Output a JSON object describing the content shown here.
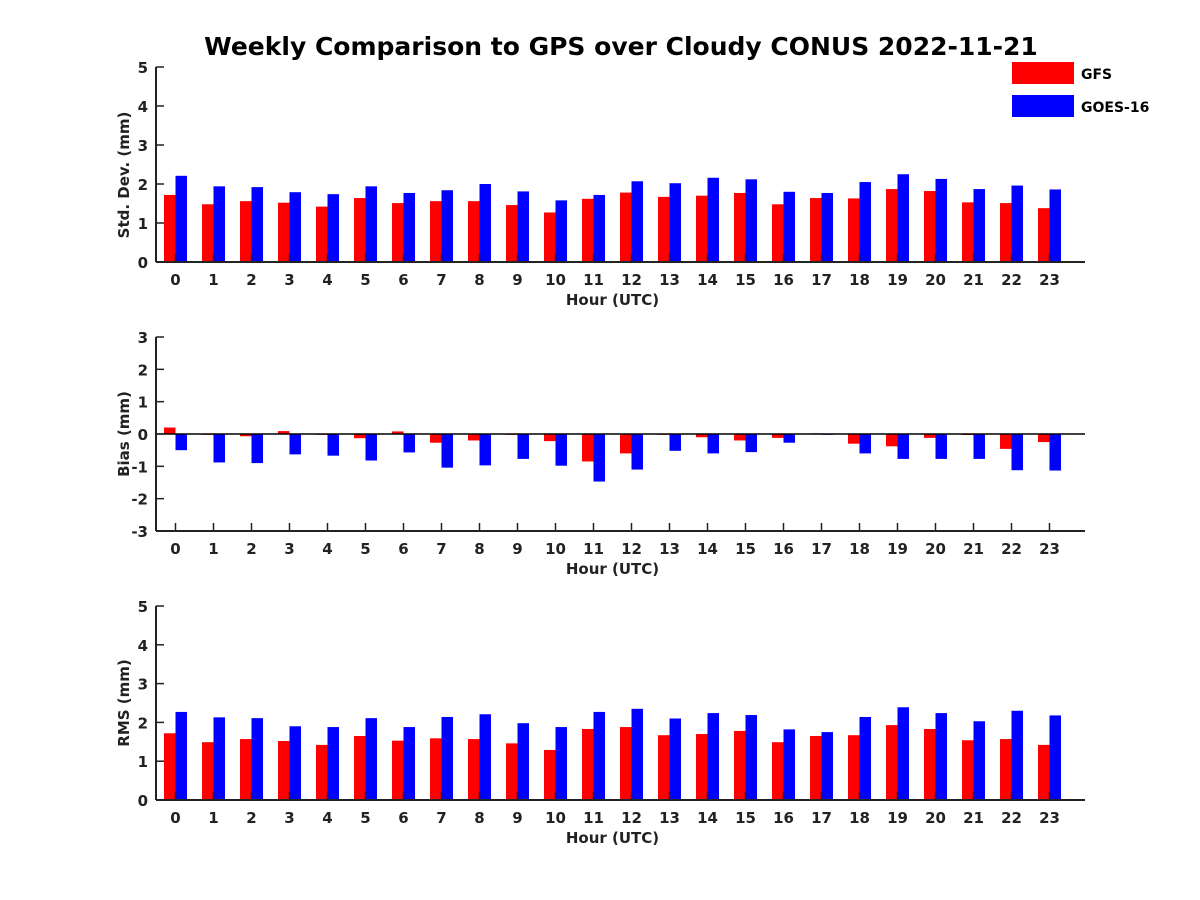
{
  "chart_data": {
    "title": "Weekly Comparison to GPS over Cloudy CONUS 2022-11-21",
    "legend": {
      "placement": "top-right",
      "entries": [
        {
          "name": "GFS",
          "color": "#ff0000"
        },
        {
          "name": "GOES-16",
          "color": "#0000ff"
        }
      ]
    },
    "panels": [
      {
        "type": "bar",
        "xlabel": "Hour (UTC)",
        "ylabel": "Std. Dev. (mm)",
        "ylim": [
          0,
          5
        ],
        "yticks": [
          0,
          1,
          2,
          3,
          4,
          5
        ],
        "categories": [
          "0",
          "1",
          "2",
          "3",
          "4",
          "5",
          "6",
          "7",
          "8",
          "9",
          "10",
          "11",
          "12",
          "13",
          "14",
          "15",
          "16",
          "17",
          "18",
          "19",
          "20",
          "21",
          "22",
          "23"
        ],
        "series": [
          {
            "name": "GFS",
            "color": "#ff0000",
            "values": [
              1.72,
              1.48,
              1.56,
              1.52,
              1.42,
              1.64,
              1.51,
              1.56,
              1.56,
              1.46,
              1.27,
              1.62,
              1.78,
              1.67,
              1.7,
              1.77,
              1.48,
              1.64,
              1.63,
              1.87,
              1.82,
              1.53,
              1.51,
              1.38
            ]
          },
          {
            "name": "GOES-16",
            "color": "#0000ff",
            "values": [
              2.21,
              1.94,
              1.92,
              1.79,
              1.74,
              1.94,
              1.77,
              1.84,
              2.0,
              1.81,
              1.58,
              1.72,
              2.07,
              2.02,
              2.16,
              2.12,
              1.8,
              1.77,
              2.05,
              2.25,
              2.13,
              1.87,
              1.96,
              1.86
            ]
          }
        ]
      },
      {
        "type": "bar",
        "xlabel": "Hour (UTC)",
        "ylabel": "Bias (mm)",
        "ylim": [
          -3,
          3
        ],
        "yticks": [
          -3,
          -2,
          -1,
          0,
          1,
          2,
          3
        ],
        "categories": [
          "0",
          "1",
          "2",
          "3",
          "4",
          "5",
          "6",
          "7",
          "8",
          "9",
          "10",
          "11",
          "12",
          "13",
          "14",
          "15",
          "16",
          "17",
          "18",
          "19",
          "20",
          "21",
          "22",
          "23"
        ],
        "series": [
          {
            "name": "GFS",
            "color": "#ff0000",
            "values": [
              0.2,
              -0.02,
              -0.07,
              0.09,
              -0.02,
              -0.13,
              0.08,
              -0.27,
              -0.2,
              -0.02,
              -0.22,
              -0.85,
              -0.6,
              -0.02,
              -0.1,
              -0.2,
              -0.12,
              0.02,
              -0.3,
              -0.38,
              -0.12,
              -0.03,
              -0.46,
              -0.25
            ]
          },
          {
            "name": "GOES-16",
            "color": "#0000ff",
            "values": [
              -0.5,
              -0.88,
              -0.9,
              -0.63,
              -0.67,
              -0.82,
              -0.57,
              -1.04,
              -0.97,
              -0.77,
              -0.98,
              -1.47,
              -1.1,
              -0.52,
              -0.6,
              -0.56,
              -0.27,
              -0.02,
              -0.6,
              -0.77,
              -0.77,
              -0.77,
              -1.12,
              -1.13
            ]
          }
        ]
      },
      {
        "type": "bar",
        "xlabel": "Hour (UTC)",
        "ylabel": "RMS (mm)",
        "ylim": [
          0,
          5
        ],
        "yticks": [
          0,
          1,
          2,
          3,
          4,
          5
        ],
        "categories": [
          "0",
          "1",
          "2",
          "3",
          "4",
          "5",
          "6",
          "7",
          "8",
          "9",
          "10",
          "11",
          "12",
          "13",
          "14",
          "15",
          "16",
          "17",
          "18",
          "19",
          "20",
          "21",
          "22",
          "23"
        ],
        "series": [
          {
            "name": "GFS",
            "color": "#ff0000",
            "values": [
              1.72,
              1.49,
              1.57,
              1.52,
              1.42,
              1.65,
              1.53,
              1.59,
              1.57,
              1.46,
              1.29,
              1.83,
              1.88,
              1.67,
              1.7,
              1.78,
              1.49,
              1.65,
              1.67,
              1.93,
              1.83,
              1.54,
              1.57,
              1.42
            ]
          },
          {
            "name": "GOES-16",
            "color": "#0000ff",
            "values": [
              2.27,
              2.13,
              2.11,
              1.9,
              1.88,
              2.11,
              1.88,
              2.14,
              2.21,
              1.98,
              1.88,
              2.27,
              2.35,
              2.1,
              2.24,
              2.19,
              1.82,
              1.75,
              2.14,
              2.39,
              2.24,
              2.03,
              2.3,
              2.18
            ]
          }
        ]
      }
    ]
  }
}
